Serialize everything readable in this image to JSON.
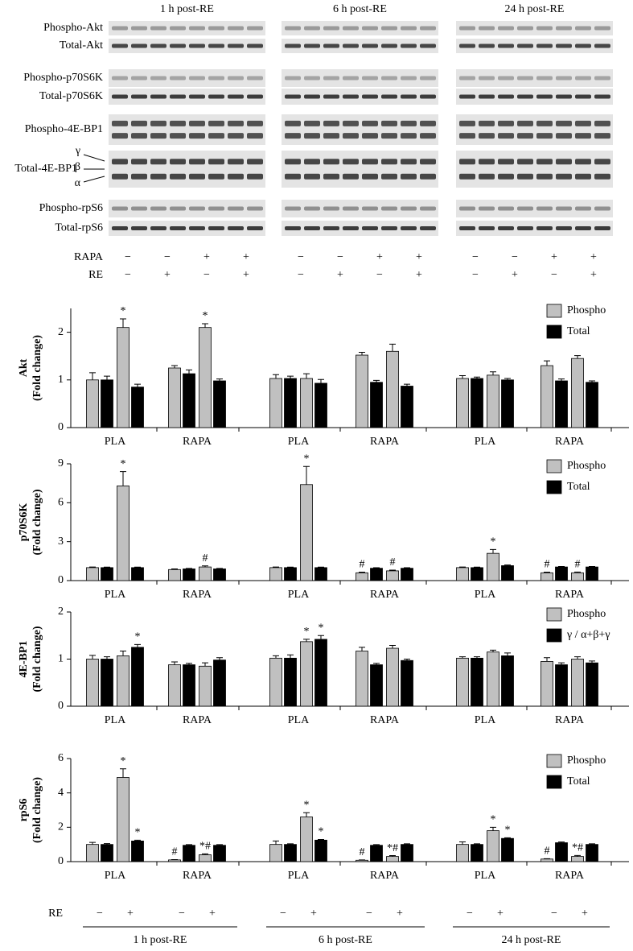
{
  "blots": {
    "times": [
      "1 h post-RE",
      "6 h post-RE",
      "24 h post-RE"
    ],
    "rows": [
      "Phospho-Akt",
      "Total-Akt",
      "Phospho-p70S6K",
      "Total-p70S6K",
      "Phospho-4E-BP1",
      "Total-4E-BP1",
      "Phospho-rpS6",
      "Total-rpS6"
    ],
    "isoforms": [
      "γ",
      "β",
      "α"
    ],
    "treatments": [
      {
        "label": "RAPA",
        "signs": [
          "−",
          "−",
          "+",
          "+"
        ]
      },
      {
        "label": "RE",
        "signs": [
          "−",
          "+",
          "−",
          "+"
        ]
      }
    ]
  },
  "chart_data": [
    {
      "type": "bar",
      "ylabel": "Akt",
      "ylabel_sub": "(Fold change)",
      "categories": [
        "PLA",
        "RAPA",
        "PLA",
        "RAPA",
        "PLA",
        "RAPA"
      ],
      "ylim": [
        0,
        2.5
      ],
      "yticks": [
        0,
        1,
        2
      ],
      "legend": "upper right",
      "series": [
        {
          "name": "Phospho",
          "color": "#c0c0c0",
          "values": [
            [
              1.0,
              2.1
            ],
            [
              1.25,
              2.1
            ],
            [
              1.03,
              1.03
            ],
            [
              1.52,
              1.6
            ],
            [
              1.03,
              1.1
            ],
            [
              1.3,
              1.45
            ]
          ],
          "errors": [
            [
              0.15,
              0.18
            ],
            [
              0.05,
              0.08
            ],
            [
              0.08,
              0.1
            ],
            [
              0.06,
              0.15
            ],
            [
              0.06,
              0.07
            ],
            [
              0.1,
              0.06
            ]
          ],
          "markers": [
            [
              null,
              "*"
            ],
            [
              null,
              "*"
            ],
            [
              null,
              null
            ],
            [
              null,
              null
            ],
            [
              null,
              null
            ],
            [
              null,
              null
            ]
          ]
        },
        {
          "name": "Total",
          "color": "#000000",
          "values": [
            [
              1.0,
              0.85
            ],
            [
              1.13,
              0.98
            ],
            [
              1.03,
              0.93
            ],
            [
              0.95,
              0.87
            ],
            [
              1.03,
              1.0
            ],
            [
              0.98,
              0.95
            ]
          ],
          "errors": [
            [
              0.08,
              0.06
            ],
            [
              0.08,
              0.04
            ],
            [
              0.05,
              0.08
            ],
            [
              0.04,
              0.04
            ],
            [
              0.03,
              0.03
            ],
            [
              0.04,
              0.03
            ]
          ],
          "markers": [
            [
              null,
              null
            ],
            [
              null,
              null
            ],
            [
              null,
              null
            ],
            [
              null,
              null
            ],
            [
              null,
              null
            ],
            [
              null,
              null
            ]
          ]
        }
      ]
    },
    {
      "type": "bar",
      "ylabel": "p70S6K",
      "ylabel_sub": "(Fold change)",
      "categories": [
        "PLA",
        "RAPA",
        "PLA",
        "RAPA",
        "PLA",
        "RAPA"
      ],
      "ylim": [
        0,
        9
      ],
      "yticks": [
        0,
        3,
        6,
        9
      ],
      "legend": "upper right",
      "series": [
        {
          "name": "Phospho",
          "color": "#c0c0c0",
          "values": [
            [
              1.0,
              7.3
            ],
            [
              0.85,
              1.05
            ],
            [
              1.0,
              7.4
            ],
            [
              0.6,
              0.75
            ],
            [
              1.0,
              2.1
            ],
            [
              0.6,
              0.6
            ]
          ],
          "errors": [
            [
              0.05,
              1.1
            ],
            [
              0.05,
              0.08
            ],
            [
              0.05,
              1.4
            ],
            [
              0.05,
              0.06
            ],
            [
              0.05,
              0.3
            ],
            [
              0.05,
              0.06
            ]
          ],
          "markers": [
            [
              null,
              "*"
            ],
            [
              null,
              "#"
            ],
            [
              null,
              "*"
            ],
            [
              "#",
              "#"
            ],
            [
              null,
              "*"
            ],
            [
              "#",
              "#"
            ]
          ]
        },
        {
          "name": "Total",
          "color": "#000000",
          "values": [
            [
              1.0,
              1.0
            ],
            [
              0.9,
              0.9
            ],
            [
              1.0,
              1.0
            ],
            [
              0.95,
              0.95
            ],
            [
              1.0,
              1.15
            ],
            [
              1.05,
              1.05
            ]
          ],
          "errors": [
            [
              0.04,
              0.04
            ],
            [
              0.04,
              0.04
            ],
            [
              0.04,
              0.04
            ],
            [
              0.04,
              0.04
            ],
            [
              0.04,
              0.05
            ],
            [
              0.04,
              0.04
            ]
          ],
          "markers": [
            [
              null,
              null
            ],
            [
              null,
              null
            ],
            [
              null,
              null
            ],
            [
              null,
              null
            ],
            [
              null,
              null
            ],
            [
              null,
              null
            ]
          ]
        }
      ]
    },
    {
      "type": "bar",
      "ylabel": "4E-BP1",
      "ylabel_sub": "(Fold change)",
      "categories": [
        "PLA",
        "RAPA",
        "PLA",
        "RAPA",
        "PLA",
        "RAPA"
      ],
      "ylim": [
        0,
        2
      ],
      "yticks": [
        0,
        1,
        2
      ],
      "legend": "upper right",
      "series": [
        {
          "name": "Phospho",
          "color": "#c0c0c0",
          "values": [
            [
              1.0,
              1.07
            ],
            [
              0.88,
              0.85
            ],
            [
              1.02,
              1.37
            ],
            [
              1.17,
              1.23
            ],
            [
              1.02,
              1.15
            ],
            [
              0.95,
              1.0
            ]
          ],
          "errors": [
            [
              0.08,
              0.1
            ],
            [
              0.06,
              0.07
            ],
            [
              0.05,
              0.05
            ],
            [
              0.08,
              0.06
            ],
            [
              0.03,
              0.04
            ],
            [
              0.08,
              0.05
            ]
          ],
          "markers": [
            [
              null,
              null
            ],
            [
              null,
              null
            ],
            [
              null,
              "*"
            ],
            [
              null,
              null
            ],
            [
              null,
              null
            ],
            [
              null,
              null
            ]
          ]
        },
        {
          "name": "γ / α+β+γ",
          "color": "#000000",
          "values": [
            [
              1.0,
              1.25
            ],
            [
              0.88,
              0.98
            ],
            [
              1.02,
              1.42
            ],
            [
              0.88,
              0.97
            ],
            [
              1.02,
              1.07
            ],
            [
              0.88,
              0.92
            ]
          ],
          "errors": [
            [
              0.05,
              0.06
            ],
            [
              0.03,
              0.05
            ],
            [
              0.07,
              0.08
            ],
            [
              0.03,
              0.03
            ],
            [
              0.03,
              0.06
            ],
            [
              0.04,
              0.04
            ]
          ],
          "markers": [
            [
              null,
              "*"
            ],
            [
              null,
              null
            ],
            [
              null,
              "*"
            ],
            [
              null,
              null
            ],
            [
              null,
              null
            ],
            [
              null,
              null
            ]
          ]
        }
      ]
    },
    {
      "type": "bar",
      "ylabel": "rpS6",
      "ylabel_sub": "(Fold change)",
      "categories": [
        "PLA",
        "RAPA",
        "PLA",
        "RAPA",
        "PLA",
        "RAPA"
      ],
      "ylim": [
        0,
        6
      ],
      "yticks": [
        0,
        2,
        4,
        6
      ],
      "legend": "upper right",
      "series": [
        {
          "name": "Phospho",
          "color": "#c0c0c0",
          "values": [
            [
              1.0,
              4.9
            ],
            [
              0.1,
              0.4
            ],
            [
              1.0,
              2.6
            ],
            [
              0.08,
              0.3
            ],
            [
              1.0,
              1.8
            ],
            [
              0.15,
              0.3
            ]
          ],
          "errors": [
            [
              0.12,
              0.5
            ],
            [
              0.02,
              0.05
            ],
            [
              0.2,
              0.25
            ],
            [
              0.02,
              0.05
            ],
            [
              0.15,
              0.2
            ],
            [
              0.02,
              0.06
            ]
          ],
          "markers": [
            [
              null,
              "*"
            ],
            [
              "#",
              "*#"
            ],
            [
              null,
              "*"
            ],
            [
              "#",
              "*#"
            ],
            [
              null,
              "*"
            ],
            [
              "#",
              "*#"
            ]
          ]
        },
        {
          "name": "Total",
          "color": "#000000",
          "values": [
            [
              1.0,
              1.2
            ],
            [
              0.95,
              0.95
            ],
            [
              1.0,
              1.25
            ],
            [
              0.95,
              1.0
            ],
            [
              1.0,
              1.35
            ],
            [
              1.1,
              1.0
            ]
          ],
          "errors": [
            [
              0.05,
              0.05
            ],
            [
              0.04,
              0.04
            ],
            [
              0.04,
              0.04
            ],
            [
              0.04,
              0.04
            ],
            [
              0.04,
              0.04
            ],
            [
              0.04,
              0.04
            ]
          ],
          "markers": [
            [
              null,
              "*"
            ],
            [
              null,
              null
            ],
            [
              null,
              "*"
            ],
            [
              null,
              null
            ],
            [
              null,
              "*"
            ],
            [
              null,
              null
            ]
          ]
        }
      ]
    }
  ],
  "footer": {
    "re_label": "RE",
    "re_states": [
      "−",
      "+"
    ],
    "times": [
      "1 h post-RE",
      "6 h post-RE",
      "24 h post-RE"
    ]
  }
}
